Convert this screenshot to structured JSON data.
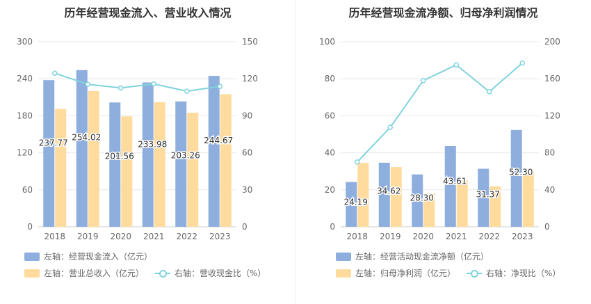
{
  "colors": {
    "bar_primary": "#8eaede",
    "bar_secondary": "#ffdb9e",
    "line": "#7fd3dc",
    "grid": "#e8e8e8",
    "axis_text": "#666666"
  },
  "chart_data": [
    {
      "type": "bar",
      "title": "历年经营现金流入、营业收入情况",
      "categories": [
        "2018",
        "2019",
        "2020",
        "2021",
        "2022",
        "2023"
      ],
      "y_left": {
        "ticks": [
          "0",
          "60",
          "120",
          "180",
          "240",
          "300"
        ],
        "ylim": [
          0,
          300
        ]
      },
      "y_right": {
        "ticks": [
          "0",
          "30",
          "60",
          "90",
          "120",
          "150"
        ],
        "ylim": [
          0,
          150
        ]
      },
      "series": [
        {
          "name": "左轴：经营现金流入（亿元）",
          "kind": "bar",
          "axis": "left",
          "values": [
            237.77,
            254.02,
            201.56,
            233.98,
            203.26,
            244.67
          ],
          "labels": [
            "237.77",
            "254.02",
            "201.56",
            "233.98",
            "203.26",
            "244.67"
          ]
        },
        {
          "name": "左轴：营业总收入（亿元）",
          "kind": "bar",
          "axis": "left",
          "values": [
            191,
            220,
            179,
            202,
            185,
            215
          ]
        },
        {
          "name": "右轴：营收现金比（%）",
          "kind": "line",
          "axis": "right",
          "values": [
            124.5,
            115.5,
            112.6,
            115.8,
            109.9,
            113.8
          ]
        }
      ]
    },
    {
      "type": "bar",
      "title": "历年经营现金流净额、归母净利润情况",
      "categories": [
        "2018",
        "2019",
        "2020",
        "2021",
        "2022",
        "2023"
      ],
      "y_left": {
        "ticks": [
          "0",
          "20",
          "40",
          "60",
          "80",
          "100"
        ],
        "ylim": [
          0,
          100
        ]
      },
      "y_right": {
        "ticks": [
          "0",
          "40",
          "80",
          "120",
          "160",
          "200"
        ],
        "ylim": [
          0,
          200
        ]
      },
      "series": [
        {
          "name": "左轴：经营活动现金流净额（亿元）",
          "kind": "bar",
          "axis": "left",
          "values": [
            24.19,
            34.62,
            28.3,
            43.61,
            31.37,
            52.3
          ],
          "labels": [
            "24.19",
            "34.62",
            "28.30",
            "43.61",
            "31.37",
            "52.30"
          ]
        },
        {
          "name": "左轴：归母净利润（亿元）",
          "kind": "bar",
          "axis": "left",
          "values": [
            34.5,
            32.3,
            18.0,
            25.0,
            21.8,
            29.7
          ]
        },
        {
          "name": "右轴：净现比（%）",
          "kind": "line",
          "axis": "right",
          "values": [
            70,
            107.5,
            158,
            175,
            146,
            177
          ]
        }
      ]
    }
  ]
}
